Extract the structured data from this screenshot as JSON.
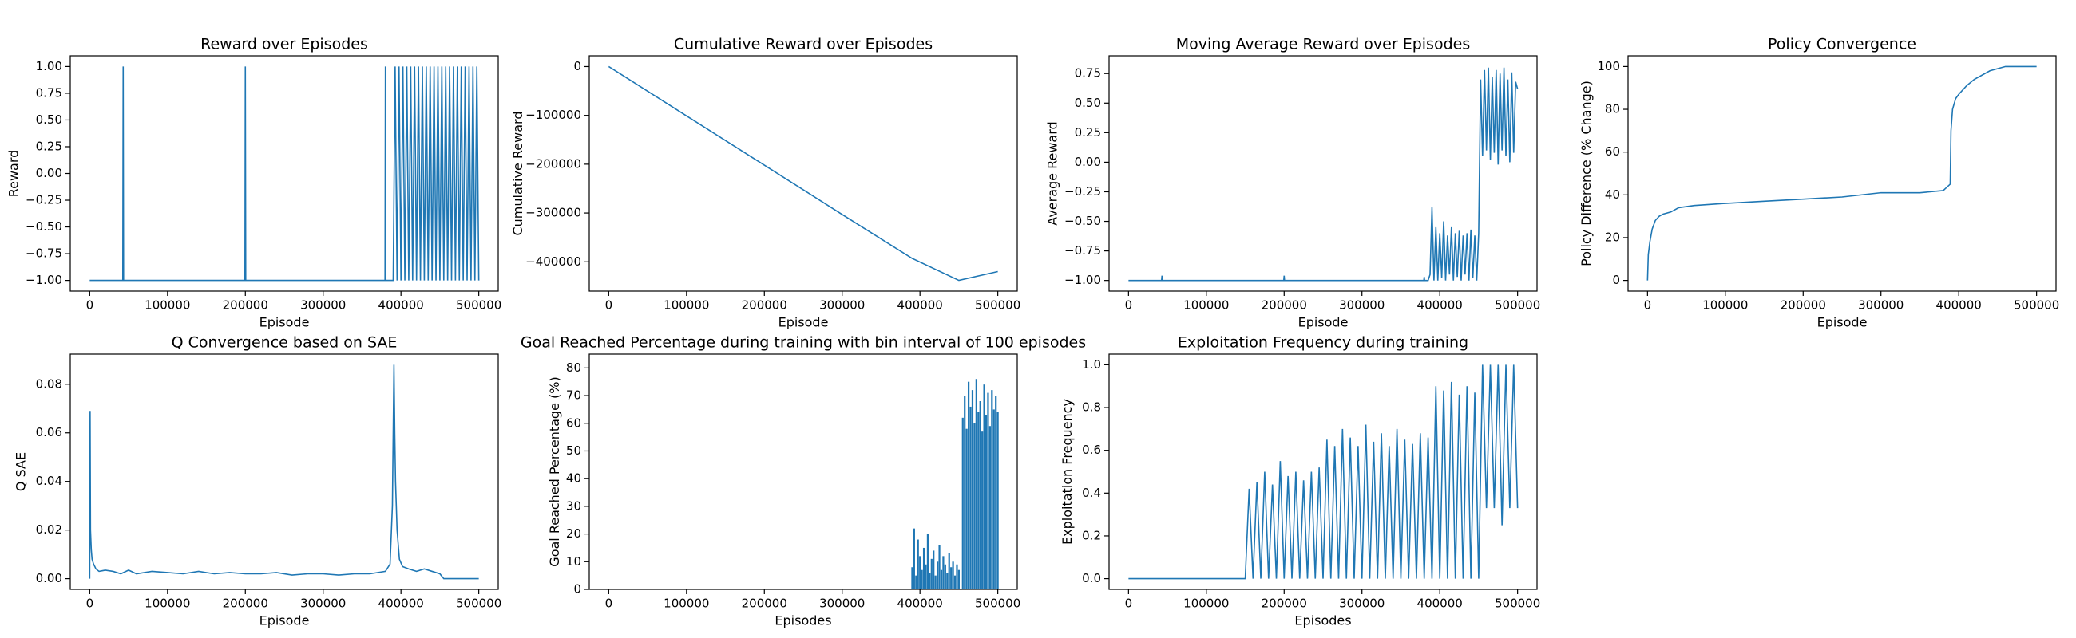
{
  "chart_data": [
    {
      "type": "line",
      "title": "Reward over Episodes",
      "xlabel": "Episode",
      "ylabel": "Reward",
      "color": "#1f77b4",
      "xlim": [
        -25000,
        525000
      ],
      "ylim": [
        -1.1,
        1.1
      ],
      "xticks": [
        0,
        100000,
        200000,
        300000,
        400000,
        500000
      ],
      "yticks": [
        {
          "value": -1,
          "label": "−1.00"
        },
        {
          "value": -0.75,
          "label": "−0.75"
        },
        {
          "value": -0.5,
          "label": "−0.50"
        },
        {
          "value": -0.25,
          "label": "−0.25"
        },
        {
          "value": 0,
          "label": "0.00"
        },
        {
          "value": 0.25,
          "label": "0.25"
        },
        {
          "value": 0.5,
          "label": "0.50"
        },
        {
          "value": 0.75,
          "label": "0.75"
        },
        {
          "value": 1,
          "label": "1.00"
        }
      ],
      "x": [
        0,
        42500,
        43000,
        43500,
        199500,
        200000,
        200500,
        379500,
        380000,
        380500,
        390000,
        392500,
        395000,
        397500,
        400000,
        402500,
        405000,
        407500,
        410000,
        412500,
        415000,
        417500,
        420000,
        422500,
        425000,
        427500,
        430000,
        432500,
        435000,
        437500,
        440000,
        442500,
        445000,
        447500,
        450000,
        452500,
        455000,
        457500,
        460000,
        462500,
        465000,
        467500,
        470000,
        472500,
        475000,
        477500,
        480000,
        482500,
        485000,
        487500,
        490000,
        492500,
        495000,
        497500,
        500000
      ],
      "values": [
        -1,
        -1,
        1,
        -1,
        -1,
        1,
        -1,
        -1,
        1,
        -1,
        -1,
        1,
        -1,
        1,
        -1,
        1,
        -1,
        1,
        -1,
        1,
        -1,
        1,
        -1,
        1,
        -1,
        1,
        -1,
        1,
        -1,
        1,
        -1,
        1,
        -1,
        1,
        -1,
        1,
        -1,
        1,
        -1,
        1,
        -1,
        1,
        -1,
        1,
        -1,
        1,
        -1,
        1,
        -1,
        1,
        -1,
        1,
        -1,
        1,
        -1
      ]
    },
    {
      "type": "line",
      "title": "Cumulative Reward over Episodes",
      "xlabel": "Episode",
      "ylabel": "Cumulative Reward",
      "color": "#1f77b4",
      "xlim": [
        -25000,
        525000
      ],
      "ylim": [
        -460000,
        22000
      ],
      "xticks": [
        0,
        100000,
        200000,
        300000,
        400000,
        500000
      ],
      "yticks": [
        {
          "value": -400000,
          "label": "−400000"
        },
        {
          "value": -300000,
          "label": "−300000"
        },
        {
          "value": -200000,
          "label": "−200000"
        },
        {
          "value": -100000,
          "label": "−100000"
        },
        0
      ],
      "x": [
        0,
        100000,
        200000,
        300000,
        390000,
        450000,
        500000
      ],
      "values": [
        0,
        -101000,
        -202000,
        -303000,
        -393000,
        -438000,
        -420000
      ]
    },
    {
      "type": "line",
      "title": "Moving Average Reward over Episodes",
      "xlabel": "Episode",
      "ylabel": "Average Reward",
      "color": "#1f77b4",
      "xlim": [
        -25000,
        525000
      ],
      "ylim": [
        -1.09,
        0.9
      ],
      "xticks": [
        0,
        100000,
        200000,
        300000,
        400000,
        500000
      ],
      "yticks": [
        {
          "value": -1,
          "label": "−1.00"
        },
        {
          "value": -0.75,
          "label": "−0.75"
        },
        {
          "value": -0.5,
          "label": "−0.50"
        },
        {
          "value": -0.25,
          "label": "−0.25"
        },
        {
          "value": 0,
          "label": "0.00"
        },
        {
          "value": 0.25,
          "label": "0.25"
        },
        {
          "value": 0.5,
          "label": "0.50"
        },
        {
          "value": 0.75,
          "label": "0.75"
        }
      ],
      "x": [
        0,
        42500,
        43000,
        43500,
        199500,
        200000,
        200500,
        379500,
        380000,
        380500,
        385000,
        387500,
        390000,
        392500,
        395000,
        397500,
        400000,
        402500,
        405000,
        407500,
        410000,
        412500,
        415000,
        417500,
        420000,
        422500,
        425000,
        427500,
        430000,
        432500,
        435000,
        437500,
        440000,
        442500,
        445000,
        447500,
        450000,
        452500,
        455000,
        457500,
        460000,
        462500,
        465000,
        467500,
        470000,
        472500,
        475000,
        477500,
        480000,
        482500,
        485000,
        487500,
        490000,
        492500,
        495000,
        497500,
        500000
      ],
      "values": [
        -1,
        -1,
        -0.96,
        -1,
        -1,
        -0.96,
        -1,
        -1,
        -0.97,
        -1,
        -1,
        -0.95,
        -0.38,
        -1,
        -0.55,
        -1,
        -0.6,
        -0.98,
        -0.5,
        -1,
        -0.62,
        -0.95,
        -0.55,
        -1,
        -0.6,
        -0.97,
        -0.58,
        -1,
        -0.62,
        -0.95,
        -0.6,
        -1,
        -0.57,
        -0.98,
        -0.62,
        -1,
        -0.6,
        0.7,
        0.05,
        0.78,
        0.1,
        0.8,
        0.02,
        0.72,
        0.08,
        0.78,
        -0.02,
        0.75,
        0.1,
        0.8,
        0.05,
        0.7,
        0.0,
        0.76,
        0.08,
        0.68,
        0.62
      ]
    },
    {
      "type": "line",
      "title": "Policy Convergence",
      "xlabel": "Episode",
      "ylabel": "Policy Difference (% Change)",
      "color": "#1f77b4",
      "xlim": [
        -25000,
        525000
      ],
      "ylim": [
        -5,
        105
      ],
      "xticks": [
        0,
        100000,
        200000,
        300000,
        400000,
        500000
      ],
      "yticks": [
        0,
        20,
        40,
        60,
        80,
        100
      ],
      "x": [
        0,
        1000,
        3000,
        6000,
        10000,
        15000,
        20000,
        30000,
        40000,
        60000,
        100000,
        150000,
        200000,
        250000,
        300000,
        350000,
        380000,
        386000,
        389000,
        390000,
        392000,
        396000,
        400000,
        410000,
        420000,
        440000,
        460000,
        500000
      ],
      "values": [
        0,
        12,
        18,
        24,
        28,
        30,
        31,
        32,
        34,
        35,
        36,
        37,
        38,
        39,
        41,
        41,
        42,
        44,
        45,
        70,
        80,
        85,
        87,
        91,
        94,
        98,
        100,
        100
      ]
    },
    {
      "type": "line",
      "title": "Q Convergence based on SAE",
      "xlabel": "Episode",
      "ylabel": "Q SAE",
      "color": "#1f77b4",
      "xlim": [
        -25000,
        525000
      ],
      "ylim": [
        -0.0044,
        0.0924
      ],
      "xticks": [
        0,
        100000,
        200000,
        300000,
        400000,
        500000
      ],
      "yticks": [
        {
          "value": 0,
          "label": "0.00"
        },
        {
          "value": 0.02,
          "label": "0.02"
        },
        {
          "value": 0.04,
          "label": "0.04"
        },
        {
          "value": 0.06,
          "label": "0.06"
        },
        {
          "value": 0.08,
          "label": "0.08"
        }
      ],
      "x": [
        0,
        500,
        1000,
        2000,
        3000,
        5000,
        8000,
        12000,
        20000,
        30000,
        40000,
        50000,
        60000,
        80000,
        100000,
        120000,
        140000,
        160000,
        180000,
        200000,
        220000,
        240000,
        260000,
        280000,
        300000,
        320000,
        340000,
        360000,
        380000,
        386000,
        389000,
        391000,
        392000,
        393000,
        395000,
        398000,
        402000,
        410000,
        420000,
        430000,
        440000,
        450000,
        455000,
        500000
      ],
      "values": [
        0.0,
        0.069,
        0.02,
        0.012,
        0.008,
        0.006,
        0.004,
        0.003,
        0.0035,
        0.003,
        0.002,
        0.0035,
        0.002,
        0.003,
        0.0025,
        0.002,
        0.003,
        0.002,
        0.0025,
        0.002,
        0.002,
        0.0025,
        0.0015,
        0.002,
        0.002,
        0.0015,
        0.002,
        0.002,
        0.003,
        0.006,
        0.03,
        0.088,
        0.06,
        0.04,
        0.02,
        0.008,
        0.005,
        0.004,
        0.003,
        0.004,
        0.003,
        0.002,
        0,
        0
      ]
    },
    {
      "type": "bar",
      "title": "Goal Reached Percentage during training with bin interval of 100 episodes",
      "xlabel": "Episodes",
      "ylabel": "Goal Reached Percentage (%)",
      "color": "#1f77b4",
      "xlim": [
        -25000,
        525000
      ],
      "ylim": [
        0,
        85
      ],
      "xticks": [
        0,
        100000,
        200000,
        300000,
        400000,
        500000
      ],
      "yticks": [
        0,
        10,
        20,
        30,
        40,
        50,
        60,
        70,
        80
      ],
      "x": [
        390000,
        392500,
        395000,
        397500,
        400000,
        402500,
        405000,
        407500,
        410000,
        412500,
        415000,
        417500,
        420000,
        422500,
        425000,
        427500,
        430000,
        432500,
        435000,
        437500,
        440000,
        442500,
        445000,
        447500,
        450000,
        452500,
        455000,
        457500,
        460000,
        462500,
        465000,
        467500,
        470000,
        472500,
        475000,
        477500,
        480000,
        482500,
        485000,
        487500,
        490000,
        492500,
        495000,
        497500,
        500000
      ],
      "values": [
        8,
        22,
        5,
        18,
        12,
        7,
        15,
        9,
        20,
        6,
        11,
        14,
        5,
        10,
        16,
        7,
        12,
        9,
        6,
        13,
        8,
        10,
        5,
        9,
        7,
        0,
        62,
        70,
        58,
        75,
        66,
        72,
        60,
        76,
        64,
        68,
        57,
        74,
        63,
        71,
        59,
        72,
        65,
        70,
        64
      ]
    },
    {
      "type": "line",
      "title": "Exploitation Frequency during training",
      "xlabel": "Episodes",
      "ylabel": "Exploitation Frequency",
      "color": "#1f77b4",
      "xlim": [
        -25000,
        525000
      ],
      "ylim": [
        -0.05,
        1.05
      ],
      "xticks": [
        0,
        100000,
        200000,
        300000,
        400000,
        500000
      ],
      "yticks": [
        {
          "value": 0,
          "label": "0.0"
        },
        {
          "value": 0.2,
          "label": "0.2"
        },
        {
          "value": 0.4,
          "label": "0.4"
        },
        {
          "value": 0.6,
          "label": "0.6"
        },
        {
          "value": 0.8,
          "label": "0.8"
        },
        {
          "value": 1,
          "label": "1.0"
        }
      ],
      "x": [
        0,
        150000,
        155000,
        160000,
        165000,
        170000,
        175000,
        180000,
        185000,
        190000,
        195000,
        200000,
        205000,
        210000,
        215000,
        220000,
        225000,
        230000,
        235000,
        240000,
        245000,
        250000,
        255000,
        260000,
        265000,
        270000,
        275000,
        280000,
        285000,
        290000,
        295000,
        300000,
        305000,
        310000,
        315000,
        320000,
        325000,
        330000,
        335000,
        340000,
        345000,
        350000,
        355000,
        360000,
        365000,
        370000,
        375000,
        380000,
        385000,
        390000,
        395000,
        400000,
        405000,
        410000,
        415000,
        420000,
        425000,
        430000,
        435000,
        440000,
        445000,
        450000,
        455000,
        460000,
        465000,
        470000,
        475000,
        480000,
        485000,
        490000,
        495000,
        500000
      ],
      "values": [
        0,
        0,
        0.42,
        0,
        0.45,
        0,
        0.5,
        0,
        0.44,
        0,
        0.55,
        0,
        0.48,
        0,
        0.5,
        0,
        0.46,
        0,
        0.5,
        0,
        0.52,
        0,
        0.65,
        0,
        0.62,
        0,
        0.7,
        0,
        0.66,
        0,
        0.62,
        0,
        0.72,
        0,
        0.64,
        0,
        0.68,
        0,
        0.62,
        0,
        0.7,
        0,
        0.65,
        0,
        0.63,
        0,
        0.68,
        0,
        0.66,
        0,
        0.9,
        0,
        0.88,
        0,
        0.92,
        0,
        0.86,
        0,
        0.9,
        0,
        0.87,
        0,
        1,
        0.33,
        1,
        0.33,
        1,
        0.25,
        1,
        0.33,
        1,
        0.33
      ]
    }
  ]
}
